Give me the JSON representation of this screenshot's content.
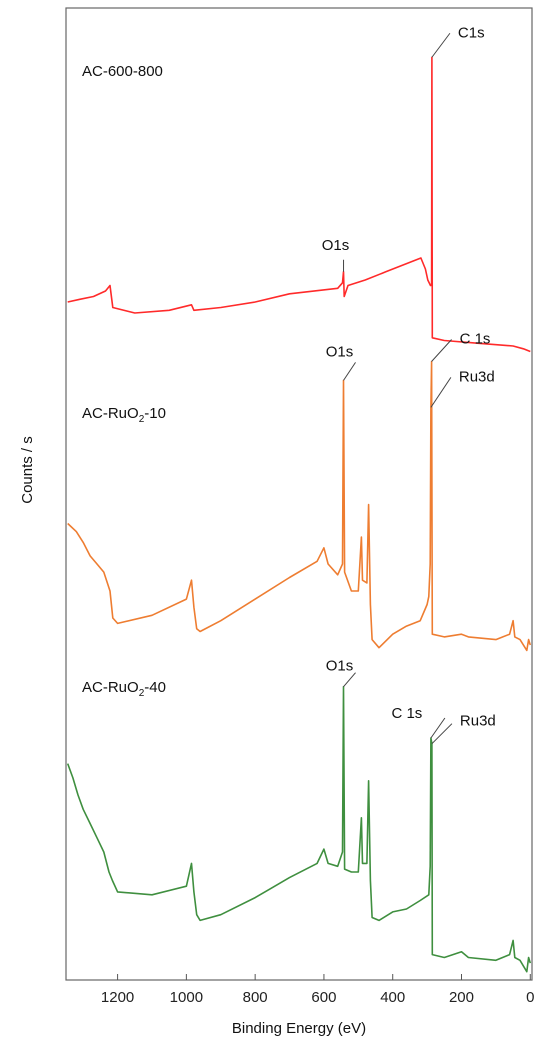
{
  "chart_data": {
    "type": "line",
    "xlabel": "Binding Energy (eV)",
    "ylabel": "Counts / s",
    "xlim": [
      1350,
      -5
    ],
    "x_reversed": true,
    "x_ticks": [
      1200,
      1000,
      800,
      600,
      400,
      200,
      0
    ],
    "y_ticks": [],
    "grid": false,
    "series": [
      {
        "name": "AC-600-800",
        "color": "#ff2a2a",
        "label_base": "AC-600-800",
        "label_sub": "",
        "label_tail": "",
        "points": [
          [
            1345,
            0.16
          ],
          [
            1310,
            0.17
          ],
          [
            1270,
            0.18
          ],
          [
            1235,
            0.2
          ],
          [
            1222,
            0.22
          ],
          [
            1214,
            0.14
          ],
          [
            1150,
            0.12
          ],
          [
            1050,
            0.13
          ],
          [
            985,
            0.15
          ],
          [
            978,
            0.13
          ],
          [
            900,
            0.14
          ],
          [
            800,
            0.16
          ],
          [
            700,
            0.19
          ],
          [
            560,
            0.21
          ],
          [
            546,
            0.23
          ],
          [
            543,
            0.27
          ],
          [
            541,
            0.18
          ],
          [
            530,
            0.22
          ],
          [
            480,
            0.24
          ],
          [
            420,
            0.27
          ],
          [
            318,
            0.32
          ],
          [
            305,
            0.28
          ],
          [
            298,
            0.24
          ],
          [
            290,
            0.22
          ],
          [
            287,
            0.22
          ],
          [
            286,
            1.05
          ],
          [
            285,
            0.03
          ],
          [
            250,
            0.02
          ],
          [
            150,
            0.01
          ],
          [
            50,
            0.0
          ],
          [
            20,
            -0.01
          ],
          [
            0,
            -0.02
          ]
        ],
        "peaks": [
          {
            "text": "O1s",
            "x": 543,
            "y": 0.27
          },
          {
            "text": "C1s",
            "x": 286,
            "y": 1.05
          }
        ]
      },
      {
        "name": "AC-RuO2-10",
        "color": "#ee7d31",
        "label_base": "AC-RuO",
        "label_sub": "2",
        "label_tail": "-10",
        "points": [
          [
            1345,
            0.45
          ],
          [
            1320,
            0.42
          ],
          [
            1300,
            0.38
          ],
          [
            1280,
            0.33
          ],
          [
            1260,
            0.3
          ],
          [
            1240,
            0.27
          ],
          [
            1222,
            0.2
          ],
          [
            1214,
            0.1
          ],
          [
            1200,
            0.08
          ],
          [
            1100,
            0.11
          ],
          [
            1000,
            0.17
          ],
          [
            985,
            0.24
          ],
          [
            978,
            0.14
          ],
          [
            970,
            0.06
          ],
          [
            960,
            0.05
          ],
          [
            900,
            0.09
          ],
          [
            800,
            0.17
          ],
          [
            700,
            0.25
          ],
          [
            620,
            0.31
          ],
          [
            600,
            0.36
          ],
          [
            588,
            0.3
          ],
          [
            560,
            0.26
          ],
          [
            546,
            0.3
          ],
          [
            543,
            0.98
          ],
          [
            540,
            0.27
          ],
          [
            520,
            0.2
          ],
          [
            500,
            0.2
          ],
          [
            491,
            0.4
          ],
          [
            488,
            0.24
          ],
          [
            475,
            0.23
          ],
          [
            470,
            0.52
          ],
          [
            465,
            0.15
          ],
          [
            460,
            0.02
          ],
          [
            440,
            -0.01
          ],
          [
            400,
            0.04
          ],
          [
            360,
            0.07
          ],
          [
            320,
            0.09
          ],
          [
            300,
            0.15
          ],
          [
            295,
            0.18
          ],
          [
            291,
            0.3
          ],
          [
            289,
            0.88
          ],
          [
            287,
            1.05
          ],
          [
            285,
            0.04
          ],
          [
            250,
            0.03
          ],
          [
            200,
            0.04
          ],
          [
            180,
            0.03
          ],
          [
            100,
            0.02
          ],
          [
            60,
            0.04
          ],
          [
            50,
            0.09
          ],
          [
            45,
            0.03
          ],
          [
            30,
            0.02
          ],
          [
            10,
            -0.02
          ],
          [
            5,
            0.02
          ],
          [
            0,
            0.0
          ]
        ],
        "peaks": [
          {
            "text": "O1s",
            "x": 543,
            "y": 0.98
          },
          {
            "text": "C 1s",
            "x": 287,
            "y": 1.05
          },
          {
            "text": "Ru3d",
            "x": 289,
            "y": 0.88
          }
        ]
      },
      {
        "name": "AC-RuO2-40",
        "color": "#3f8f3f",
        "label_base": "AC-RuO",
        "label_sub": "2",
        "label_tail": "-40",
        "points": [
          [
            1345,
            0.71
          ],
          [
            1330,
            0.66
          ],
          [
            1315,
            0.6
          ],
          [
            1300,
            0.55
          ],
          [
            1280,
            0.5
          ],
          [
            1260,
            0.45
          ],
          [
            1240,
            0.4
          ],
          [
            1225,
            0.33
          ],
          [
            1215,
            0.3
          ],
          [
            1200,
            0.26
          ],
          [
            1100,
            0.25
          ],
          [
            1000,
            0.28
          ],
          [
            985,
            0.36
          ],
          [
            978,
            0.26
          ],
          [
            970,
            0.18
          ],
          [
            960,
            0.16
          ],
          [
            900,
            0.18
          ],
          [
            800,
            0.24
          ],
          [
            700,
            0.31
          ],
          [
            620,
            0.36
          ],
          [
            600,
            0.41
          ],
          [
            588,
            0.36
          ],
          [
            560,
            0.35
          ],
          [
            546,
            0.4
          ],
          [
            543,
            0.98
          ],
          [
            540,
            0.34
          ],
          [
            520,
            0.33
          ],
          [
            500,
            0.33
          ],
          [
            491,
            0.52
          ],
          [
            488,
            0.36
          ],
          [
            475,
            0.36
          ],
          [
            470,
            0.65
          ],
          [
            465,
            0.3
          ],
          [
            460,
            0.17
          ],
          [
            440,
            0.16
          ],
          [
            400,
            0.19
          ],
          [
            360,
            0.2
          ],
          [
            320,
            0.23
          ],
          [
            295,
            0.25
          ],
          [
            291,
            0.35
          ],
          [
            289,
            0.8
          ],
          [
            286,
            0.78
          ],
          [
            285,
            0.04
          ],
          [
            250,
            0.03
          ],
          [
            200,
            0.05
          ],
          [
            180,
            0.03
          ],
          [
            100,
            0.02
          ],
          [
            60,
            0.04
          ],
          [
            50,
            0.09
          ],
          [
            45,
            0.03
          ],
          [
            30,
            0.02
          ],
          [
            10,
            -0.02
          ],
          [
            5,
            0.03
          ],
          [
            0,
            0.01
          ]
        ],
        "peaks": [
          {
            "text": "O1s",
            "x": 543,
            "y": 0.98
          },
          {
            "text": "C 1s",
            "x": 289,
            "y": 0.8
          },
          {
            "text": "Ru3d",
            "x": 286,
            "y": 0.78
          }
        ]
      }
    ]
  }
}
